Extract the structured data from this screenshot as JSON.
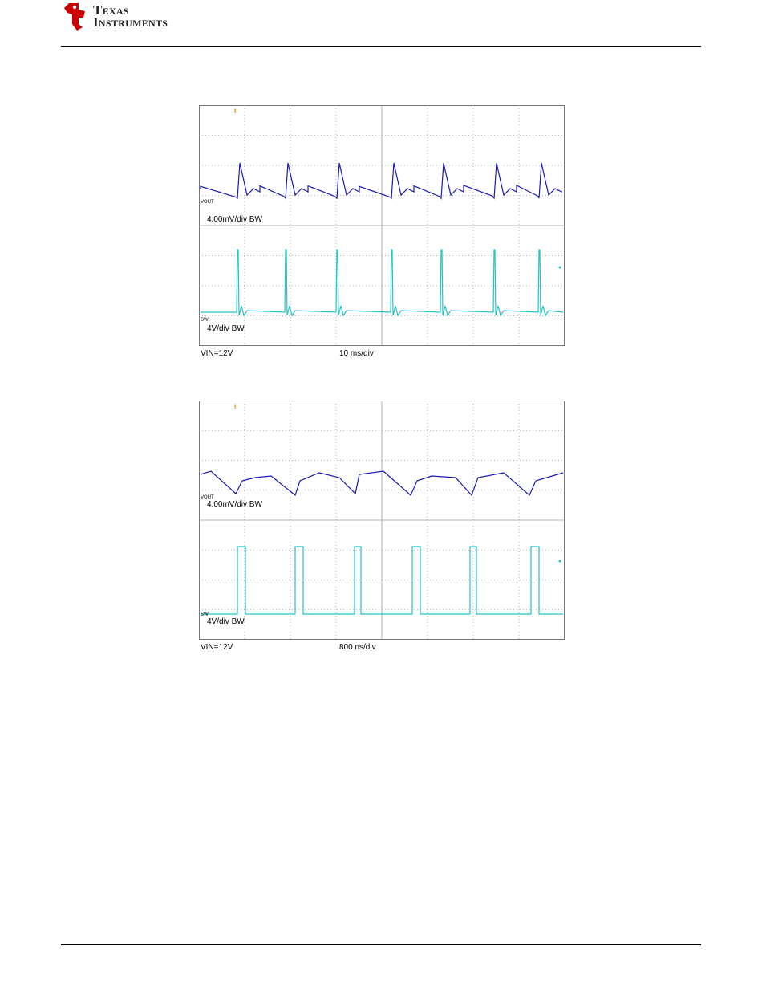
{
  "header": {
    "logo_line1": "Texas",
    "logo_line2": "Instruments",
    "logo_colors": {
      "mark": "#cc0000",
      "text": "#231f20"
    }
  },
  "figures": [
    {
      "ch1_tag": "VOUT",
      "ch1_scale": "4.00mV/div BW",
      "ch2_tag": "SW",
      "ch2_scale": "4V/div  BW",
      "vin": "VIN=12V",
      "timebase": "10 ms/div"
    },
    {
      "ch1_tag": "VOUT",
      "ch1_scale": "4.00mV/div BW",
      "ch2_tag": "SW",
      "ch2_scale": "4V/div  BW",
      "vin": "VIN=12V",
      "timebase": "800 ns/div"
    }
  ],
  "colors": {
    "vout": "#1a1ab4",
    "sw": "#22c4c8",
    "trigger": "#e08a00",
    "grid": "#9a9a9a"
  }
}
